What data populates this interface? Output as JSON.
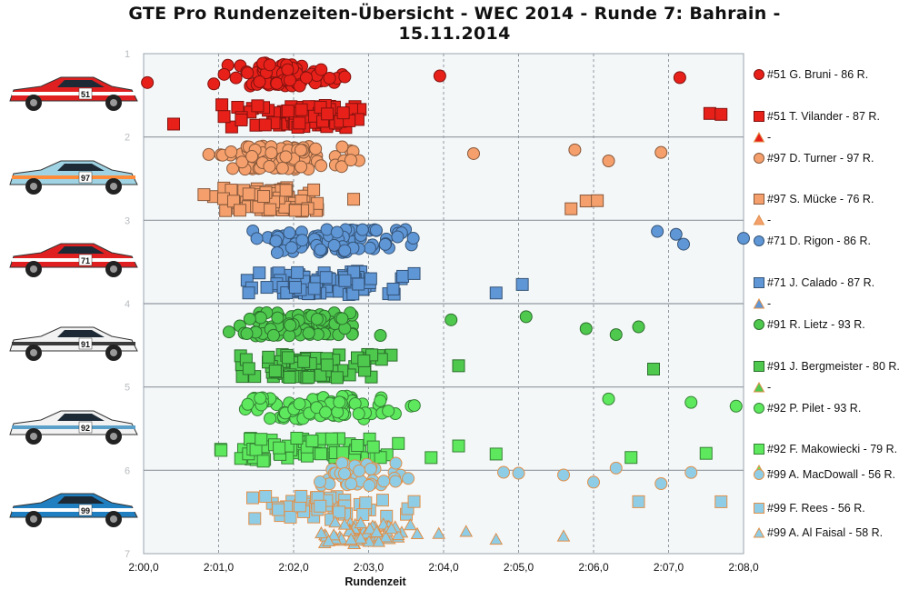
{
  "title_line1": "GTE Pro Rundenzeiten-Übersicht - WEC 2014 - Runde 7: Bahrain -",
  "title_line2": "15.11.2014",
  "colors": {
    "red": "#e8201a",
    "orange": "#f5a06c",
    "blue": "#5f96d6",
    "green": "#4ec94e",
    "lightgreen": "#5ee85e",
    "skyblue": "#8fcde6",
    "grid": "#9aa3ad"
  },
  "cars": [
    {
      "label": "Ferrari #51",
      "body": "#e02020",
      "stripe": "#ffffff",
      "number": "51"
    },
    {
      "label": "Aston Martin #97",
      "body": "#9fd3e3",
      "stripe": "#ff8c3a",
      "number": "97"
    },
    {
      "label": "Ferrari #71",
      "body": "#e02020",
      "stripe": "#ffffff",
      "number": "71"
    },
    {
      "label": "Porsche #91",
      "body": "#f2f2f2",
      "stripe": "#3a3a3a",
      "number": "91"
    },
    {
      "label": "Porsche #92",
      "body": "#f2f2f2",
      "stripe": "#5aa0c8",
      "number": "92"
    },
    {
      "label": "Aston Martin #99",
      "body": "#1f7fc0",
      "stripe": "#ffffff",
      "number": "99"
    }
  ],
  "chart_data": {
    "type": "scatter",
    "title": "GTE Pro Rundenzeiten-Übersicht - WEC 2014 - Runde 7: Bahrain - 15.11.2014",
    "xlabel": "Rundenzeit",
    "x_ticks": [
      "2:00,0",
      "2:01,0",
      "2:02,0",
      "2:03,0",
      "2:04,0",
      "2:05,0",
      "2:06,0",
      "2:07,0",
      "2:08,0"
    ],
    "xlim_seconds": [
      120,
      128
    ],
    "y_ticks": [
      "1",
      "2",
      "3",
      "4",
      "5",
      "6",
      "7"
    ],
    "ylim": [
      1,
      7
    ],
    "legend_position": "right",
    "series": [
      {
        "name": "#51 G. Bruni - 86 R.",
        "marker": "circle",
        "color": "#e8201a",
        "lane": 1.25,
        "summary": {
          "min": 120.0,
          "max": 127.2,
          "bulk_range": [
            120.8,
            123.0
          ]
        },
        "outliers": [
          120.05,
          123.95,
          127.15
        ]
      },
      {
        "name": "#51 T. Vilander - 87 R.",
        "marker": "square",
        "color": "#e8201a",
        "lane": 1.75,
        "summary": {
          "min": 120.4,
          "max": 127.7,
          "bulk_range": [
            120.8,
            123.4
          ]
        },
        "outliers": [
          120.4,
          127.55,
          127.7
        ]
      },
      {
        "name": "-",
        "marker": "triangle",
        "color": "#e8201a",
        "lane": 2.0,
        "values": []
      },
      {
        "name": "#97 D. Turner - 97 R.",
        "marker": "circle",
        "color": "#f5a06c",
        "lane": 2.25,
        "summary": {
          "min": 120.3,
          "max": 126.9,
          "bulk_range": [
            120.6,
            123.0
          ]
        },
        "outliers": [
          124.4,
          125.75,
          126.2,
          126.9
        ]
      },
      {
        "name": "#97 S. Mücke - 76 R.",
        "marker": "square",
        "color": "#f5a06c",
        "lane": 2.75,
        "summary": {
          "min": 120.5,
          "max": 126.0,
          "bulk_range": [
            120.6,
            122.9
          ]
        },
        "outliers": [
          125.7,
          125.9,
          126.05
        ]
      },
      {
        "name": "-",
        "marker": "triangle",
        "color": "#f5a06c",
        "lane": 3.0,
        "values": []
      },
      {
        "name": "#71 D. Rigon - 86 R.",
        "marker": "circle",
        "color": "#5f96d6",
        "lane": 3.25,
        "summary": {
          "min": 120.9,
          "max": 128.0,
          "bulk_range": [
            121.0,
            124.0
          ]
        },
        "outliers": [
          126.85,
          127.1,
          127.2,
          128.0
        ]
      },
      {
        "name": "#71 J. Calado - 87 R.",
        "marker": "square",
        "color": "#5f96d6",
        "lane": 3.75,
        "summary": {
          "min": 120.9,
          "max": 125.1,
          "bulk_range": [
            121.0,
            124.0
          ]
        },
        "outliers": [
          124.7,
          125.05
        ]
      },
      {
        "name": "-",
        "marker": "triangle",
        "color": "#5f96d6",
        "lane": 4.0,
        "values": []
      },
      {
        "name": "#91 R. Lietz - 93 R.",
        "marker": "circle",
        "color": "#4ec94e",
        "lane": 4.25,
        "summary": {
          "min": 120.6,
          "max": 126.7,
          "bulk_range": [
            120.8,
            123.4
          ]
        },
        "outliers": [
          124.1,
          125.1,
          125.9,
          126.3,
          126.6
        ]
      },
      {
        "name": "#91 J. Bergmeister - 80 R.",
        "marker": "square",
        "color": "#4ec94e",
        "lane": 4.75,
        "summary": {
          "min": 120.7,
          "max": 126.8,
          "bulk_range": [
            121.0,
            123.6
          ]
        },
        "outliers": [
          124.2,
          126.8
        ]
      },
      {
        "name": "-",
        "marker": "triangle",
        "color": "#4ec94e",
        "lane": 5.0,
        "values": []
      },
      {
        "name": "#92 P. Pilet - 93 R.",
        "marker": "circle",
        "color": "#5ee85e",
        "lane": 5.25,
        "summary": {
          "min": 120.0,
          "max": 127.9,
          "bulk_range": [
            120.8,
            124.0
          ]
        },
        "outliers": [
          126.2,
          127.3,
          127.9
        ]
      },
      {
        "name": "#92 F. Makowiecki - 79 R.",
        "marker": "square",
        "color": "#5ee85e",
        "lane": 5.75,
        "summary": {
          "min": 120.3,
          "max": 127.6,
          "bulk_range": [
            120.7,
            124.0
          ]
        },
        "outliers": [
          124.2,
          124.7,
          126.5,
          127.5
        ]
      },
      {
        "name": "-",
        "marker": "triangle",
        "color": "#5ee85e",
        "lane": 6.0,
        "values": []
      },
      {
        "name": "#99 A. MacDowall - 56 R.",
        "marker": "circle",
        "color": "#8fcde6",
        "lane": 6.05,
        "summary": {
          "min": 121.5,
          "max": 127.3,
          "bulk_range": [
            121.8,
            124.0
          ]
        },
        "outliers": [
          124.8,
          125.0,
          125.6,
          126.0,
          126.3,
          126.9,
          127.3
        ]
      },
      {
        "name": "#99 F. Rees - 56 R.",
        "marker": "square",
        "color": "#8fcde6",
        "lane": 6.45,
        "summary": {
          "min": 120.4,
          "max": 127.7,
          "bulk_range": [
            120.9,
            123.9
          ]
        },
        "outliers": [
          126.6,
          127.7
        ]
      },
      {
        "name": "#99 A. Al Faisal - 58 R.",
        "marker": "triangle",
        "color": "#8fcde6",
        "lane": 6.75,
        "summary": {
          "min": 121.7,
          "max": 125.6,
          "bulk_range": [
            121.7,
            124.0
          ]
        },
        "outliers": [
          124.3,
          124.7,
          125.6
        ]
      }
    ]
  }
}
